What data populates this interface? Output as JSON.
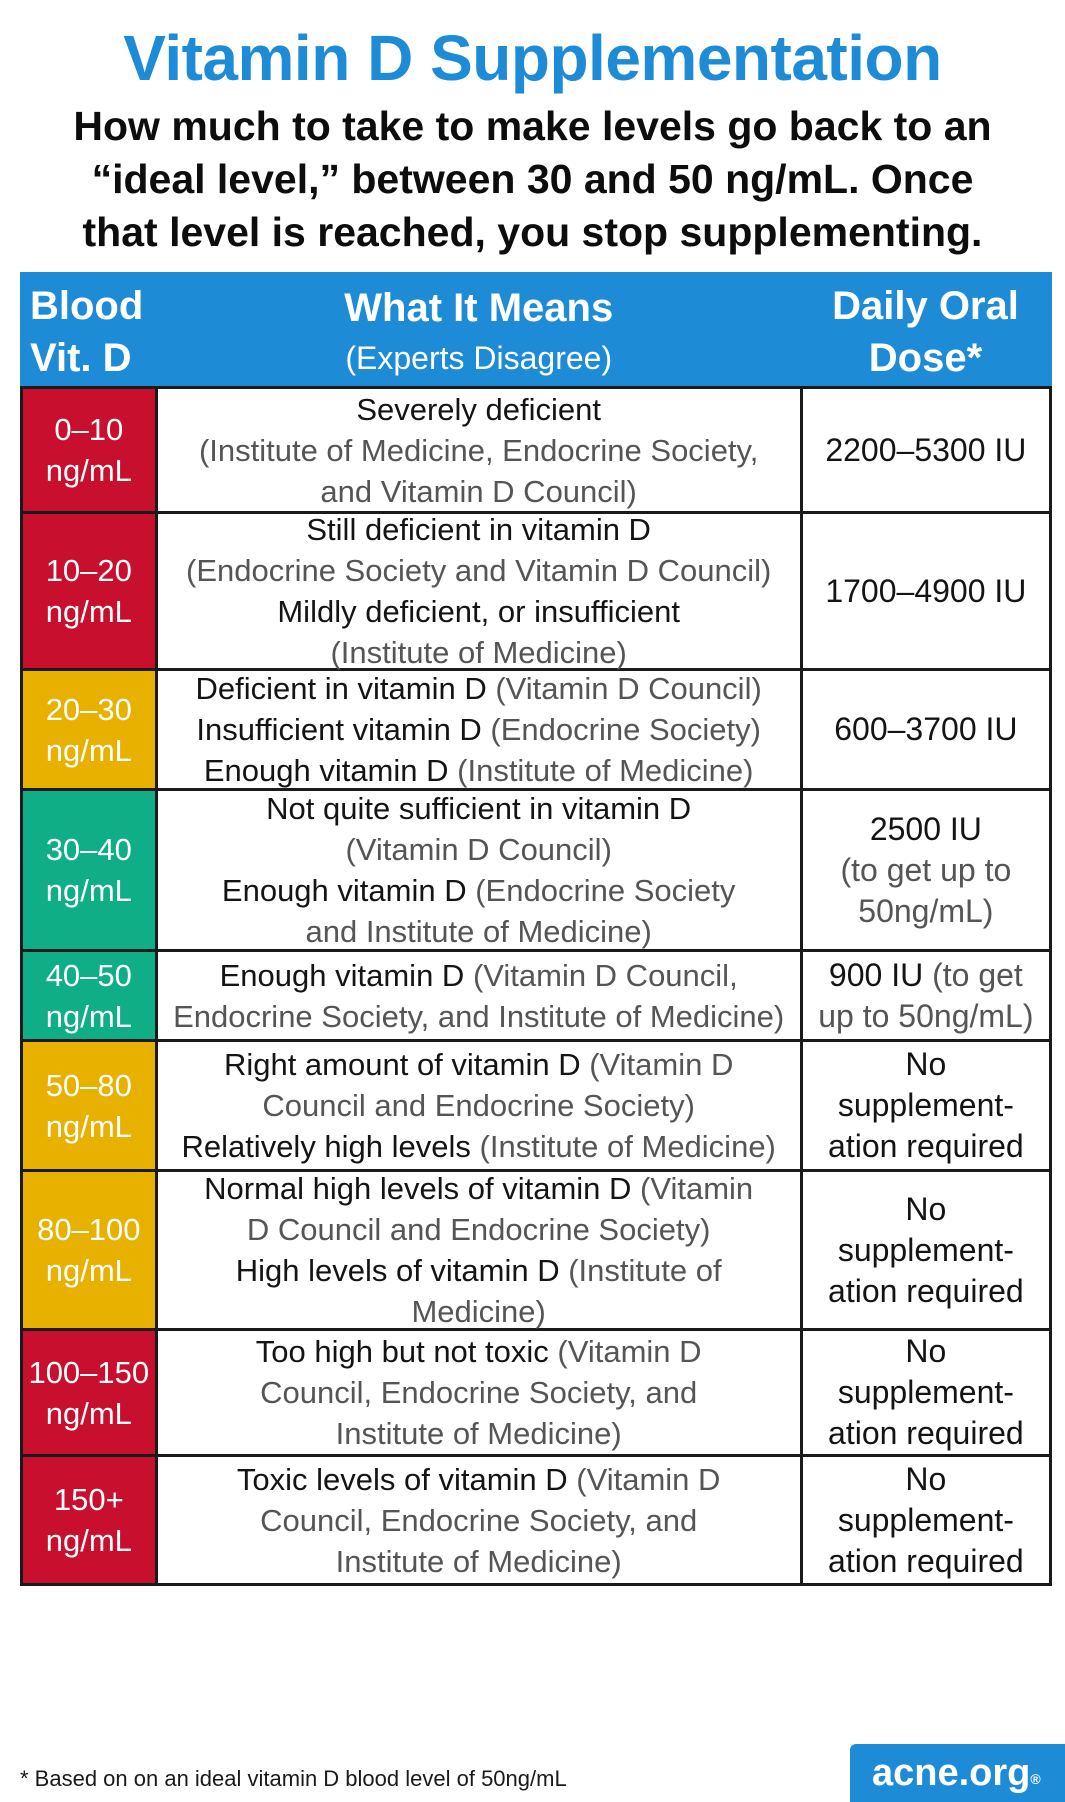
{
  "title": "Vitamin D Supplementation",
  "subtitle": {
    "lines": [
      "How much to take to make levels go back to an",
      "“ideal level,” between 30 and 50 ng/mL. Once",
      "that level is reached, you stop supplementing."
    ]
  },
  "header": {
    "col1": [
      "Blood",
      "Vit. D"
    ],
    "col2_main": "What It Means",
    "col2_sub": "(Experts Disagree)",
    "col3": [
      "Daily Oral",
      "Dose*"
    ]
  },
  "colors": {
    "red": "#c8102e",
    "yellow": "#e8b100",
    "green": "#0fae86",
    "blue": "#1e8bd6"
  },
  "rows": [
    {
      "level": [
        "0–10",
        "ng/mL"
      ],
      "color": "red",
      "meaning": [
        [
          {
            "t": "Severely deficient",
            "s": "b"
          }
        ],
        [
          {
            "t": "(Institute of Medicine, Endocrine Society,",
            "s": "l"
          }
        ],
        [
          {
            "t": "and Vitamin D Council)",
            "s": "l"
          }
        ]
      ],
      "dose": [
        [
          {
            "t": "2200–5300 IU",
            "s": "b"
          }
        ]
      ]
    },
    {
      "level": [
        "10–20",
        "ng/mL"
      ],
      "color": "red",
      "meaning": [
        [
          {
            "t": "Still deficient in vitamin D",
            "s": "b"
          }
        ],
        [
          {
            "t": "(Endocrine Society and Vitamin D Council)",
            "s": "l"
          }
        ],
        [
          {
            "t": "Mildly deficient, or insufficient",
            "s": "b"
          }
        ],
        [
          {
            "t": "(Institute of Medicine)",
            "s": "l"
          }
        ]
      ],
      "dose": [
        [
          {
            "t": "1700–4900 IU",
            "s": "b"
          }
        ]
      ]
    },
    {
      "level": [
        "20–30",
        "ng/mL"
      ],
      "color": "yellow",
      "meaning": [
        [
          {
            "t": "Deficient in vitamin D ",
            "s": "b"
          },
          {
            "t": "(Vitamin D Council)",
            "s": "l"
          }
        ],
        [
          {
            "t": "Insufficient vitamin D ",
            "s": "b"
          },
          {
            "t": "(Endocrine Society)",
            "s": "l"
          }
        ],
        [
          {
            "t": "Enough vitamin D ",
            "s": "b"
          },
          {
            "t": "(Institute of Medicine)",
            "s": "l"
          }
        ]
      ],
      "dose": [
        [
          {
            "t": "600–3700 IU",
            "s": "b"
          }
        ]
      ]
    },
    {
      "level": [
        "30–40",
        "ng/mL"
      ],
      "color": "green",
      "meaning": [
        [
          {
            "t": "Not quite sufficient in vitamin D",
            "s": "b"
          }
        ],
        [
          {
            "t": "(Vitamin D Council)",
            "s": "l"
          }
        ],
        [
          {
            "t": "Enough vitamin D ",
            "s": "b"
          },
          {
            "t": "(Endocrine Society",
            "s": "l"
          }
        ],
        [
          {
            "t": "and Institute of Medicine)",
            "s": "l"
          }
        ]
      ],
      "dose": [
        [
          {
            "t": "2500 IU",
            "s": "b"
          }
        ],
        [
          {
            "t": "(to get up to",
            "s": "l"
          }
        ],
        [
          {
            "t": "50ng/mL)",
            "s": "l"
          }
        ]
      ]
    },
    {
      "level": [
        "40–50",
        "ng/mL"
      ],
      "color": "green",
      "meaning": [
        [
          {
            "t": "Enough vitamin D ",
            "s": "b"
          },
          {
            "t": "(Vitamin D Council,",
            "s": "l"
          }
        ],
        [
          {
            "t": "Endocrine Society, and Institute of Medicine)",
            "s": "l"
          }
        ]
      ],
      "dose": [
        [
          {
            "t": "900 IU ",
            "s": "b"
          },
          {
            "t": "(to get",
            "s": "l"
          }
        ],
        [
          {
            "t": "up to 50ng/mL)",
            "s": "l"
          }
        ]
      ]
    },
    {
      "level": [
        "50–80",
        "ng/mL"
      ],
      "color": "yellow",
      "meaning": [
        [
          {
            "t": "Right amount of vitamin D ",
            "s": "b"
          },
          {
            "t": "(Vitamin D",
            "s": "l"
          }
        ],
        [
          {
            "t": "Council and Endocrine Society)",
            "s": "l"
          }
        ],
        [
          {
            "t": "Relatively high levels ",
            "s": "b"
          },
          {
            "t": "(Institute of Medicine)",
            "s": "l"
          }
        ]
      ],
      "dose": [
        [
          {
            "t": "No",
            "s": "b"
          }
        ],
        [
          {
            "t": "supplement-",
            "s": "b"
          }
        ],
        [
          {
            "t": "ation required",
            "s": "b"
          }
        ]
      ]
    },
    {
      "level": [
        "80–100",
        "ng/mL"
      ],
      "color": "yellow",
      "meaning": [
        [
          {
            "t": "Normal high levels of vitamin D ",
            "s": "b"
          },
          {
            "t": "(Vitamin",
            "s": "l"
          }
        ],
        [
          {
            "t": "D Council and Endocrine Society)",
            "s": "l"
          }
        ],
        [
          {
            "t": "High levels of vitamin D ",
            "s": "b"
          },
          {
            "t": "(Institute of",
            "s": "l"
          }
        ],
        [
          {
            "t": "Medicine)",
            "s": "l"
          }
        ]
      ],
      "dose": [
        [
          {
            "t": "No",
            "s": "b"
          }
        ],
        [
          {
            "t": "supplement-",
            "s": "b"
          }
        ],
        [
          {
            "t": "ation required",
            "s": "b"
          }
        ]
      ]
    },
    {
      "level": [
        "100–150",
        "ng/mL"
      ],
      "color": "red",
      "meaning": [
        [
          {
            "t": "Too high but not toxic ",
            "s": "b"
          },
          {
            "t": "(Vitamin D",
            "s": "l"
          }
        ],
        [
          {
            "t": "Council, Endocrine Society, and",
            "s": "l"
          }
        ],
        [
          {
            "t": "Institute of Medicine)",
            "s": "l"
          }
        ]
      ],
      "dose": [
        [
          {
            "t": "No",
            "s": "b"
          }
        ],
        [
          {
            "t": "supplement-",
            "s": "b"
          }
        ],
        [
          {
            "t": "ation required",
            "s": "b"
          }
        ]
      ]
    },
    {
      "level": [
        "150+",
        "ng/mL"
      ],
      "color": "red",
      "meaning": [
        [
          {
            "t": "Toxic levels of vitamin D ",
            "s": "b"
          },
          {
            "t": "(Vitamin D",
            "s": "l"
          }
        ],
        [
          {
            "t": "Council, Endocrine Society, and",
            "s": "l"
          }
        ],
        [
          {
            "t": "Institute of Medicine)",
            "s": "l"
          }
        ]
      ],
      "dose": [
        [
          {
            "t": "No",
            "s": "b"
          }
        ],
        [
          {
            "t": "supplement-",
            "s": "b"
          }
        ],
        [
          {
            "t": "ation required",
            "s": "b"
          }
        ]
      ]
    }
  ],
  "footnote": "* Based on on an ideal vitamin D blood level of 50ng/mL",
  "logo": {
    "text": "acne.org",
    "mark": "®"
  }
}
